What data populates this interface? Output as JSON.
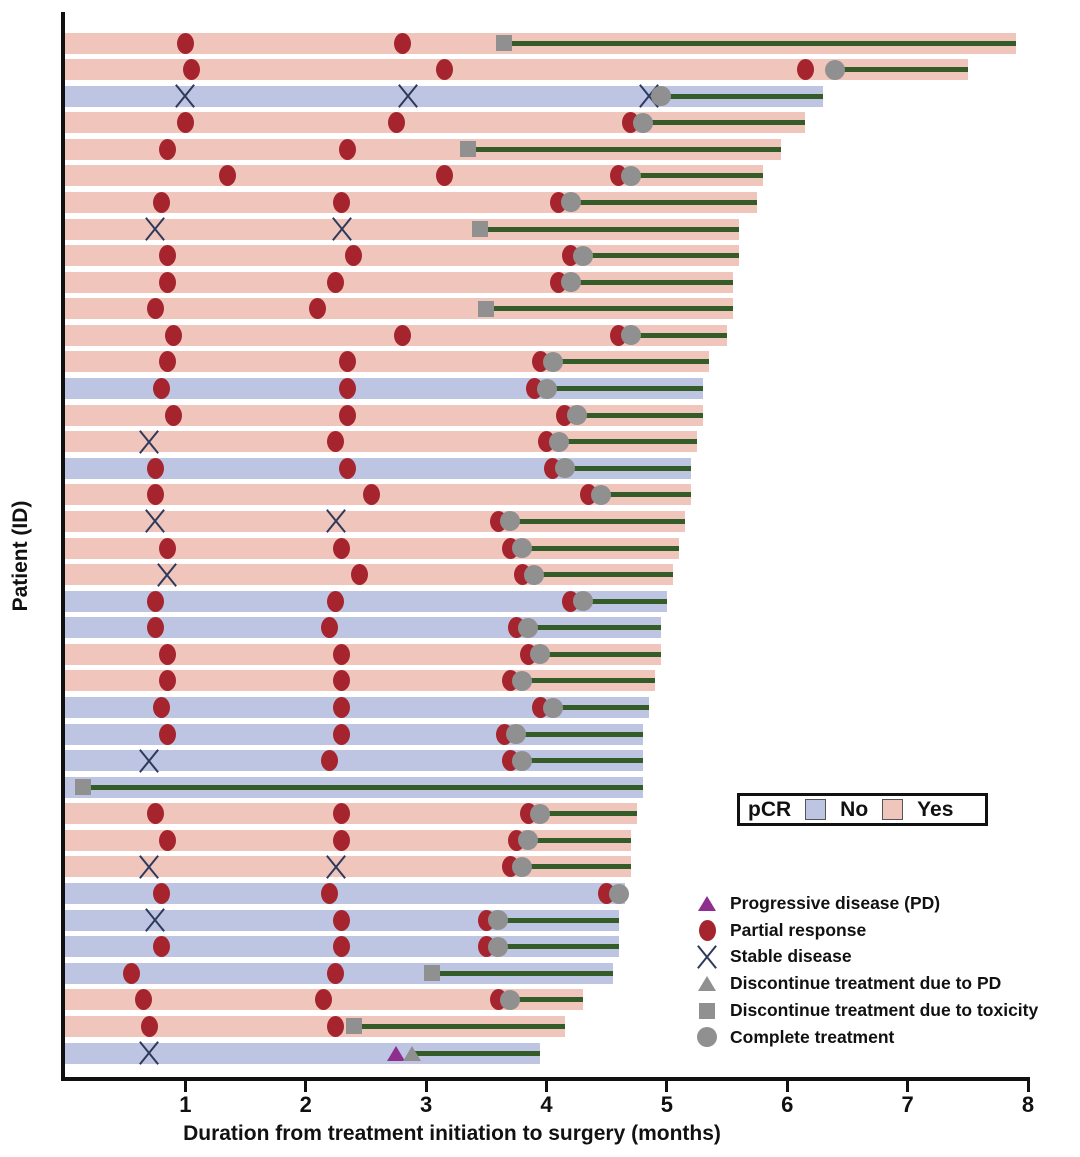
{
  "figure": {
    "xlabel": "Duration from treatment initiation to surgery (months)",
    "ylabel": "Patient (ID)"
  },
  "pcr_legend": {
    "label": "pCR",
    "items": [
      {
        "label": "No",
        "color": "#bec5e2"
      },
      {
        "label": "Yes",
        "color": "#f0c6bc"
      }
    ]
  },
  "marker_legend": {
    "items": [
      {
        "type": "pd",
        "label": "Progressive disease (PD)"
      },
      {
        "type": "pr",
        "label": "Partial response"
      },
      {
        "type": "sd",
        "label": "Stable disease"
      },
      {
        "type": "dpd",
        "label": "Discontinue treatment due to PD"
      },
      {
        "type": "tox",
        "label": "Discontinue treatment due to toxicity"
      },
      {
        "type": "comp",
        "label": "Complete treatment"
      }
    ]
  },
  "chart_data": {
    "type": "bar",
    "subtype": "swimmer-plot",
    "title": "",
    "xlabel": "Duration from treatment initiation to surgery (months)",
    "ylabel": "Patient (ID)",
    "xlim": [
      0,
      8
    ],
    "xticks": [
      1,
      2,
      3,
      4,
      5,
      6,
      7,
      8
    ],
    "grid": false,
    "colors": {
      "pcr_yes": "#f0c6bc",
      "pcr_no": "#bec5e2",
      "partial_response": "#a6242e",
      "stable_disease_x": "#2e3a5c",
      "gray_marker": "#909090",
      "progressive_disease": "#8e2f90",
      "post_treatment_line": "#335c28",
      "axis": "#111111"
    },
    "event_types": {
      "pr": "Partial response",
      "sd": "Stable disease",
      "pd": "Progressive disease (PD)",
      "dpd": "Discontinue treatment due to PD",
      "tox": "Discontinue treatment due to toxicity",
      "comp": "Complete treatment"
    },
    "patients": [
      {
        "pcr": "Yes",
        "surgery_month": 7.9,
        "treatment_end_month": 3.65,
        "events": [
          {
            "type": "pr",
            "month": 1.0
          },
          {
            "type": "pr",
            "month": 2.8
          },
          {
            "type": "tox",
            "month": 3.65
          }
        ]
      },
      {
        "pcr": "Yes",
        "surgery_month": 7.5,
        "treatment_end_month": 6.4,
        "events": [
          {
            "type": "pr",
            "month": 1.05
          },
          {
            "type": "pr",
            "month": 3.15
          },
          {
            "type": "pr",
            "month": 6.15
          },
          {
            "type": "comp",
            "month": 6.4
          }
        ]
      },
      {
        "pcr": "No",
        "surgery_month": 6.3,
        "treatment_end_month": 4.95,
        "events": [
          {
            "type": "sd",
            "month": 1.0
          },
          {
            "type": "sd",
            "month": 2.85
          },
          {
            "type": "sd",
            "month": 4.85
          },
          {
            "type": "comp",
            "month": 4.95
          }
        ]
      },
      {
        "pcr": "Yes",
        "surgery_month": 6.15,
        "treatment_end_month": 4.8,
        "events": [
          {
            "type": "pr",
            "month": 1.0
          },
          {
            "type": "pr",
            "month": 2.75
          },
          {
            "type": "pr",
            "month": 4.7
          },
          {
            "type": "comp",
            "month": 4.8
          }
        ]
      },
      {
        "pcr": "Yes",
        "surgery_month": 5.95,
        "treatment_end_month": 3.35,
        "events": [
          {
            "type": "pr",
            "month": 0.85
          },
          {
            "type": "pr",
            "month": 2.35
          },
          {
            "type": "tox",
            "month": 3.35
          }
        ]
      },
      {
        "pcr": "Yes",
        "surgery_month": 5.8,
        "treatment_end_month": 4.7,
        "events": [
          {
            "type": "pr",
            "month": 1.35
          },
          {
            "type": "pr",
            "month": 3.15
          },
          {
            "type": "pr",
            "month": 4.6
          },
          {
            "type": "comp",
            "month": 4.7
          }
        ]
      },
      {
        "pcr": "Yes",
        "surgery_month": 5.75,
        "treatment_end_month": 4.2,
        "events": [
          {
            "type": "pr",
            "month": 0.8
          },
          {
            "type": "pr",
            "month": 2.3
          },
          {
            "type": "pr",
            "month": 4.1
          },
          {
            "type": "comp",
            "month": 4.2
          }
        ]
      },
      {
        "pcr": "Yes",
        "surgery_month": 5.6,
        "treatment_end_month": 3.45,
        "events": [
          {
            "type": "sd",
            "month": 0.75
          },
          {
            "type": "sd",
            "month": 2.3
          },
          {
            "type": "tox",
            "month": 3.45
          }
        ]
      },
      {
        "pcr": "Yes",
        "surgery_month": 5.6,
        "treatment_end_month": 4.3,
        "events": [
          {
            "type": "pr",
            "month": 0.85
          },
          {
            "type": "pr",
            "month": 2.4
          },
          {
            "type": "pr",
            "month": 4.2
          },
          {
            "type": "comp",
            "month": 4.3
          }
        ]
      },
      {
        "pcr": "Yes",
        "surgery_month": 5.55,
        "treatment_end_month": 4.2,
        "events": [
          {
            "type": "pr",
            "month": 0.85
          },
          {
            "type": "pr",
            "month": 2.25
          },
          {
            "type": "pr",
            "month": 4.1
          },
          {
            "type": "comp",
            "month": 4.2
          }
        ]
      },
      {
        "pcr": "Yes",
        "surgery_month": 5.55,
        "treatment_end_month": 3.5,
        "events": [
          {
            "type": "pr",
            "month": 0.75
          },
          {
            "type": "pr",
            "month": 2.1
          },
          {
            "type": "tox",
            "month": 3.5
          }
        ]
      },
      {
        "pcr": "Yes",
        "surgery_month": 5.5,
        "treatment_end_month": 4.7,
        "events": [
          {
            "type": "pr",
            "month": 0.9
          },
          {
            "type": "pr",
            "month": 2.8
          },
          {
            "type": "pr",
            "month": 4.6
          },
          {
            "type": "comp",
            "month": 4.7
          }
        ]
      },
      {
        "pcr": "Yes",
        "surgery_month": 5.35,
        "treatment_end_month": 4.05,
        "events": [
          {
            "type": "pr",
            "month": 0.85
          },
          {
            "type": "pr",
            "month": 2.35
          },
          {
            "type": "pr",
            "month": 3.95
          },
          {
            "type": "comp",
            "month": 4.05
          }
        ]
      },
      {
        "pcr": "No",
        "surgery_month": 5.3,
        "treatment_end_month": 4.0,
        "events": [
          {
            "type": "pr",
            "month": 0.8
          },
          {
            "type": "pr",
            "month": 2.35
          },
          {
            "type": "pr",
            "month": 3.9
          },
          {
            "type": "comp",
            "month": 4.0
          }
        ]
      },
      {
        "pcr": "Yes",
        "surgery_month": 5.3,
        "treatment_end_month": 4.25,
        "events": [
          {
            "type": "pr",
            "month": 0.9
          },
          {
            "type": "pr",
            "month": 2.35
          },
          {
            "type": "pr",
            "month": 4.15
          },
          {
            "type": "comp",
            "month": 4.25
          }
        ]
      },
      {
        "pcr": "Yes",
        "surgery_month": 5.25,
        "treatment_end_month": 4.1,
        "events": [
          {
            "type": "sd",
            "month": 0.7
          },
          {
            "type": "pr",
            "month": 2.25
          },
          {
            "type": "pr",
            "month": 4.0
          },
          {
            "type": "comp",
            "month": 4.1
          }
        ]
      },
      {
        "pcr": "No",
        "surgery_month": 5.2,
        "treatment_end_month": 4.15,
        "events": [
          {
            "type": "pr",
            "month": 0.75
          },
          {
            "type": "pr",
            "month": 2.35
          },
          {
            "type": "pr",
            "month": 4.05
          },
          {
            "type": "comp",
            "month": 4.15
          }
        ]
      },
      {
        "pcr": "Yes",
        "surgery_month": 5.2,
        "treatment_end_month": 4.45,
        "events": [
          {
            "type": "pr",
            "month": 0.75
          },
          {
            "type": "pr",
            "month": 2.55
          },
          {
            "type": "pr",
            "month": 4.35
          },
          {
            "type": "comp",
            "month": 4.45
          }
        ]
      },
      {
        "pcr": "Yes",
        "surgery_month": 5.15,
        "treatment_end_month": 3.7,
        "events": [
          {
            "type": "sd",
            "month": 0.75
          },
          {
            "type": "sd",
            "month": 2.25
          },
          {
            "type": "pr",
            "month": 3.6
          },
          {
            "type": "comp",
            "month": 3.7
          }
        ]
      },
      {
        "pcr": "Yes",
        "surgery_month": 5.1,
        "treatment_end_month": 3.8,
        "events": [
          {
            "type": "pr",
            "month": 0.85
          },
          {
            "type": "pr",
            "month": 2.3
          },
          {
            "type": "pr",
            "month": 3.7
          },
          {
            "type": "comp",
            "month": 3.8
          }
        ]
      },
      {
        "pcr": "Yes",
        "surgery_month": 5.05,
        "treatment_end_month": 3.9,
        "events": [
          {
            "type": "sd",
            "month": 0.85
          },
          {
            "type": "pr",
            "month": 2.45
          },
          {
            "type": "pr",
            "month": 3.8
          },
          {
            "type": "comp",
            "month": 3.9
          }
        ]
      },
      {
        "pcr": "No",
        "surgery_month": 5.0,
        "treatment_end_month": 4.3,
        "events": [
          {
            "type": "pr",
            "month": 0.75
          },
          {
            "type": "pr",
            "month": 2.25
          },
          {
            "type": "pr",
            "month": 4.2
          },
          {
            "type": "comp",
            "month": 4.3
          }
        ]
      },
      {
        "pcr": "No",
        "surgery_month": 4.95,
        "treatment_end_month": 3.85,
        "events": [
          {
            "type": "pr",
            "month": 0.75
          },
          {
            "type": "pr",
            "month": 2.2
          },
          {
            "type": "pr",
            "month": 3.75
          },
          {
            "type": "comp",
            "month": 3.85
          }
        ]
      },
      {
        "pcr": "Yes",
        "surgery_month": 4.95,
        "treatment_end_month": 3.95,
        "events": [
          {
            "type": "pr",
            "month": 0.85
          },
          {
            "type": "pr",
            "month": 2.3
          },
          {
            "type": "pr",
            "month": 3.85
          },
          {
            "type": "comp",
            "month": 3.95
          }
        ]
      },
      {
        "pcr": "Yes",
        "surgery_month": 4.9,
        "treatment_end_month": 3.8,
        "events": [
          {
            "type": "pr",
            "month": 0.85
          },
          {
            "type": "pr",
            "month": 2.3
          },
          {
            "type": "pr",
            "month": 3.7
          },
          {
            "type": "comp",
            "month": 3.8
          }
        ]
      },
      {
        "pcr": "No",
        "surgery_month": 4.85,
        "treatment_end_month": 4.05,
        "events": [
          {
            "type": "pr",
            "month": 0.8
          },
          {
            "type": "pr",
            "month": 2.3
          },
          {
            "type": "pr",
            "month": 3.95
          },
          {
            "type": "comp",
            "month": 4.05
          }
        ]
      },
      {
        "pcr": "No",
        "surgery_month": 4.8,
        "treatment_end_month": 3.75,
        "events": [
          {
            "type": "pr",
            "month": 0.85
          },
          {
            "type": "pr",
            "month": 2.3
          },
          {
            "type": "pr",
            "month": 3.65
          },
          {
            "type": "comp",
            "month": 3.75
          }
        ]
      },
      {
        "pcr": "No",
        "surgery_month": 4.8,
        "treatment_end_month": 3.8,
        "events": [
          {
            "type": "sd",
            "month": 0.7
          },
          {
            "type": "pr",
            "month": 2.2
          },
          {
            "type": "pr",
            "month": 3.7
          },
          {
            "type": "comp",
            "month": 3.8
          }
        ]
      },
      {
        "pcr": "No",
        "surgery_month": 4.8,
        "treatment_end_month": 0.15,
        "events": [
          {
            "type": "tox",
            "month": 0.15
          }
        ]
      },
      {
        "pcr": "Yes",
        "surgery_month": 4.75,
        "treatment_end_month": 3.95,
        "events": [
          {
            "type": "pr",
            "month": 0.75
          },
          {
            "type": "pr",
            "month": 2.3
          },
          {
            "type": "pr",
            "month": 3.85
          },
          {
            "type": "comp",
            "month": 3.95
          }
        ]
      },
      {
        "pcr": "Yes",
        "surgery_month": 4.7,
        "treatment_end_month": 3.85,
        "events": [
          {
            "type": "pr",
            "month": 0.85
          },
          {
            "type": "pr",
            "month": 2.3
          },
          {
            "type": "pr",
            "month": 3.75
          },
          {
            "type": "comp",
            "month": 3.85
          }
        ]
      },
      {
        "pcr": "Yes",
        "surgery_month": 4.7,
        "treatment_end_month": 3.8,
        "events": [
          {
            "type": "sd",
            "month": 0.7
          },
          {
            "type": "sd",
            "month": 2.25
          },
          {
            "type": "pr",
            "month": 3.7
          },
          {
            "type": "comp",
            "month": 3.8
          }
        ]
      },
      {
        "pcr": "No",
        "surgery_month": 4.65,
        "treatment_end_month": 4.6,
        "events": [
          {
            "type": "pr",
            "month": 0.8
          },
          {
            "type": "pr",
            "month": 2.2
          },
          {
            "type": "pr",
            "month": 4.5
          },
          {
            "type": "comp",
            "month": 4.6
          }
        ]
      },
      {
        "pcr": "No",
        "surgery_month": 4.6,
        "treatment_end_month": 3.6,
        "events": [
          {
            "type": "sd",
            "month": 0.75
          },
          {
            "type": "pr",
            "month": 2.3
          },
          {
            "type": "pr",
            "month": 3.5
          },
          {
            "type": "comp",
            "month": 3.6
          }
        ]
      },
      {
        "pcr": "No",
        "surgery_month": 4.6,
        "treatment_end_month": 3.6,
        "events": [
          {
            "type": "pr",
            "month": 0.8
          },
          {
            "type": "pr",
            "month": 2.3
          },
          {
            "type": "pr",
            "month": 3.5
          },
          {
            "type": "comp",
            "month": 3.6
          }
        ]
      },
      {
        "pcr": "No",
        "surgery_month": 4.55,
        "treatment_end_month": 3.05,
        "events": [
          {
            "type": "pr",
            "month": 0.55
          },
          {
            "type": "pr",
            "month": 2.25
          },
          {
            "type": "tox",
            "month": 3.05
          }
        ]
      },
      {
        "pcr": "Yes",
        "surgery_month": 4.3,
        "treatment_end_month": 3.7,
        "events": [
          {
            "type": "pr",
            "month": 0.65
          },
          {
            "type": "pr",
            "month": 2.15
          },
          {
            "type": "pr",
            "month": 3.6
          },
          {
            "type": "comp",
            "month": 3.7
          }
        ]
      },
      {
        "pcr": "Yes",
        "surgery_month": 4.15,
        "treatment_end_month": 2.4,
        "events": [
          {
            "type": "pr",
            "month": 0.7
          },
          {
            "type": "pr",
            "month": 2.25
          },
          {
            "type": "tox",
            "month": 2.4
          }
        ]
      },
      {
        "pcr": "No",
        "surgery_month": 3.95,
        "treatment_end_month": 2.9,
        "events": [
          {
            "type": "sd",
            "month": 0.7
          },
          {
            "type": "pd",
            "month": 2.75
          },
          {
            "type": "dpd",
            "month": 2.88
          }
        ]
      }
    ]
  }
}
